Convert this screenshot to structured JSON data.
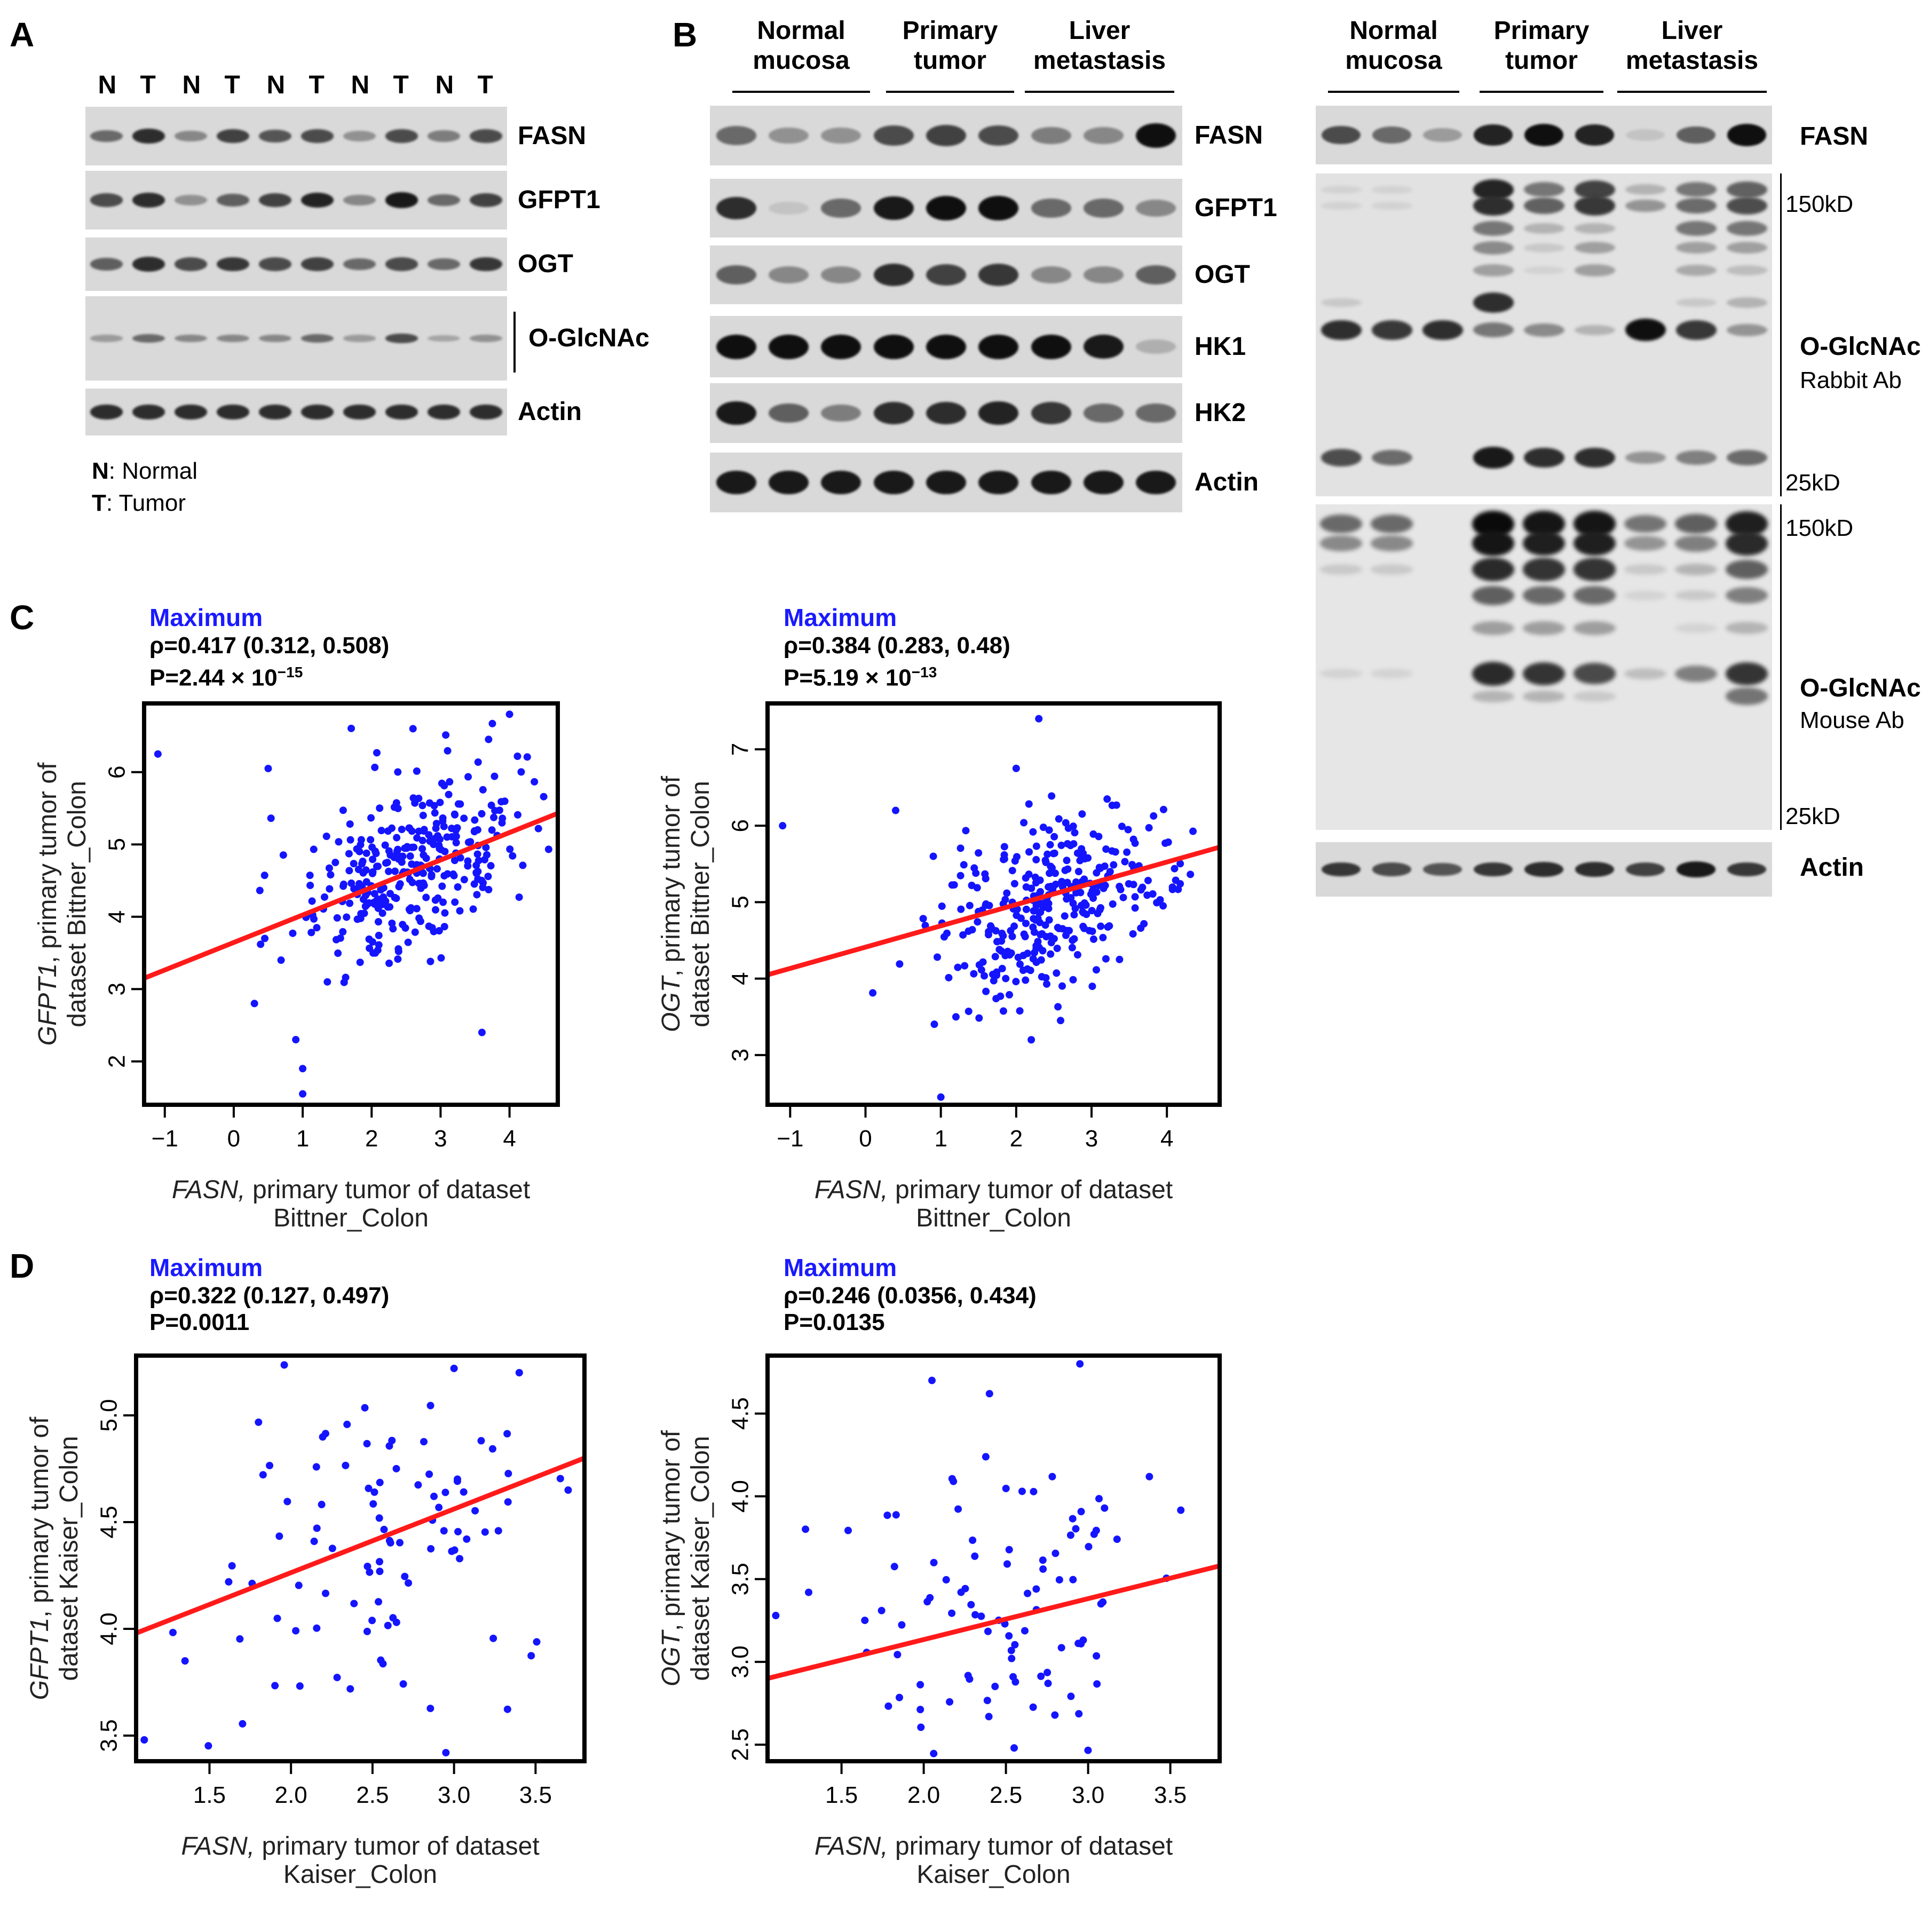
{
  "panelA": {
    "letter": "A",
    "lane_labels": [
      "N",
      "T",
      "N",
      "T",
      "N",
      "T",
      "N",
      "T",
      "N",
      "T"
    ],
    "blots": [
      {
        "name": "FASN",
        "intensity": [
          0.55,
          0.85,
          0.4,
          0.75,
          0.65,
          0.7,
          0.35,
          0.7,
          0.45,
          0.7
        ]
      },
      {
        "name": "GFPT1",
        "intensity": [
          0.7,
          0.85,
          0.35,
          0.6,
          0.75,
          0.9,
          0.4,
          0.95,
          0.55,
          0.75
        ]
      },
      {
        "name": "OGT",
        "intensity": [
          0.6,
          0.85,
          0.7,
          0.8,
          0.7,
          0.75,
          0.55,
          0.7,
          0.55,
          0.8
        ]
      },
      {
        "name": "O-GlcNAc",
        "intensity": [
          0.3,
          0.55,
          0.4,
          0.4,
          0.4,
          0.55,
          0.3,
          0.7,
          0.25,
          0.35
        ]
      },
      {
        "name": "Actin",
        "intensity": [
          0.85,
          0.85,
          0.85,
          0.85,
          0.85,
          0.85,
          0.85,
          0.85,
          0.85,
          0.85
        ]
      }
    ],
    "legend": [
      {
        "key": "N",
        "text": ": Normal"
      },
      {
        "key": "T",
        "text": ": Tumor"
      }
    ]
  },
  "panelB": {
    "letter": "B",
    "groups": [
      "Normal\nmucosa",
      "Primary\ntumor",
      "Liver\nmetastasis"
    ],
    "blots": [
      {
        "name": "FASN",
        "intensity": [
          0.55,
          0.35,
          0.35,
          0.7,
          0.75,
          0.7,
          0.45,
          0.4,
          1.0
        ]
      },
      {
        "name": "GFPT1",
        "intensity": [
          0.85,
          0.1,
          0.55,
          0.95,
          1.0,
          1.0,
          0.55,
          0.55,
          0.4
        ]
      },
      {
        "name": "OGT",
        "intensity": [
          0.6,
          0.4,
          0.4,
          0.85,
          0.75,
          0.8,
          0.4,
          0.4,
          0.6
        ]
      },
      {
        "name": "HK1",
        "intensity": [
          1.0,
          1.0,
          1.0,
          1.0,
          1.0,
          1.0,
          1.0,
          0.95,
          0.2
        ]
      },
      {
        "name": "HK2",
        "intensity": [
          0.95,
          0.6,
          0.45,
          0.85,
          0.85,
          0.9,
          0.8,
          0.55,
          0.55
        ]
      },
      {
        "name": "Actin",
        "intensity": [
          0.95,
          0.95,
          0.95,
          0.95,
          0.95,
          0.95,
          0.95,
          0.95,
          0.95
        ]
      }
    ],
    "right_groups": [
      "Normal\nmucosa",
      "Primary\ntumor",
      "Liver\nmetastasis"
    ],
    "right_fasn": {
      "name": "FASN",
      "intensity": [
        0.7,
        0.55,
        0.3,
        0.9,
        1.0,
        0.9,
        0.1,
        0.6,
        1.0
      ]
    },
    "rabbit": {
      "name": "O-GlcNAc",
      "sub": "Rabbit Ab",
      "top_marker": "150kD",
      "bottom_marker": "25kD"
    },
    "mouse": {
      "name": "O-GlcNAc",
      "sub": "Mouse Ab",
      "top_marker": "150kD",
      "bottom_marker": "25kD"
    },
    "right_actin": {
      "name": "Actin",
      "intensity": [
        0.8,
        0.7,
        0.65,
        0.8,
        0.85,
        0.85,
        0.75,
        0.95,
        0.8
      ]
    }
  },
  "panelC": {
    "letter": "C"
  },
  "panelD": {
    "letter": "D"
  },
  "chart_data": [
    {
      "type": "scatter",
      "id": "C1",
      "title": "Maximum",
      "stat_rho": "ρ=0.417 (0.312, 0.508)",
      "stat_p_base": "P=2.44 × 10",
      "stat_p_exp": "−15",
      "xlabel_italic": "FASN,",
      "xlabel_rest": " primary tumor of dataset",
      "xlabel_line2": "Bittner_Colon",
      "ylabel_italic": "GFPT1",
      "ylabel_rest": ", primary tumor of",
      "ylabel_line2": "dataset Bittner_Colon",
      "xlim": [
        -1.3,
        4.7
      ],
      "ylim": [
        1.4,
        6.95
      ],
      "xticks": [
        -1,
        0,
        1,
        2,
        3,
        4
      ],
      "xtick_labels": [
        "−1",
        "0",
        "1",
        "2",
        "3",
        "4"
      ],
      "yticks": [
        2,
        3,
        4,
        5,
        6
      ],
      "ytick_labels": [
        "2",
        "3",
        "4",
        "5",
        "6"
      ],
      "fit": {
        "x": [
          -1.3,
          4.7
        ],
        "y": [
          3.15,
          5.43
        ]
      },
      "seed": 11,
      "n": 330,
      "cx": 2.55,
      "cy": 4.7,
      "sx": 0.75,
      "sy": 0.65,
      "r": 0.42,
      "outliers": [
        [
          -1.1,
          6.25
        ],
        [
          0.5,
          6.05
        ],
        [
          0.9,
          2.3
        ],
        [
          1.0,
          1.9
        ],
        [
          1.0,
          1.55
        ],
        [
          0.3,
          2.8
        ],
        [
          3.6,
          2.4
        ],
        [
          4.0,
          6.8
        ],
        [
          2.6,
          6.6
        ],
        [
          0.45,
          3.7
        ]
      ]
    },
    {
      "type": "scatter",
      "id": "C2",
      "title": "Maximum",
      "stat_rho": "ρ=0.384 (0.283, 0.48)",
      "stat_p_base": "P=5.19 × 10",
      "stat_p_exp": "−13",
      "xlabel_italic": "FASN,",
      "xlabel_rest": " primary tumor of dataset",
      "xlabel_line2": "Bittner_Colon",
      "ylabel_italic": "OGT",
      "ylabel_rest": ", primary tumor of",
      "ylabel_line2": "dataset Bittner_Colon",
      "xlim": [
        -1.3,
        4.7
      ],
      "ylim": [
        2.35,
        7.6
      ],
      "xticks": [
        -1,
        0,
        1,
        2,
        3,
        4
      ],
      "xtick_labels": [
        "−1",
        "0",
        "1",
        "2",
        "3",
        "4"
      ],
      "yticks": [
        3,
        4,
        5,
        6,
        7
      ],
      "ytick_labels": [
        "3",
        "4",
        "5",
        "6",
        "7"
      ],
      "fit": {
        "x": [
          -1.3,
          4.7
        ],
        "y": [
          4.05,
          5.72
        ]
      },
      "seed": 23,
      "n": 330,
      "cx": 2.55,
      "cy": 5.0,
      "sx": 0.75,
      "sy": 0.6,
      "r": 0.38,
      "outliers": [
        [
          -1.1,
          6.0
        ],
        [
          0.4,
          6.2
        ],
        [
          1.0,
          2.45
        ],
        [
          2.3,
          7.4
        ],
        [
          2.0,
          6.75
        ],
        [
          0.9,
          5.6
        ],
        [
          1.2,
          3.5
        ],
        [
          2.2,
          3.2
        ]
      ]
    },
    {
      "type": "scatter",
      "id": "D1",
      "title": "Maximum",
      "stat_rho": "ρ=0.322 (0.127, 0.497)",
      "stat_p_base": "P=0.0011",
      "stat_p_exp": "",
      "xlabel_italic": "FASN,",
      "xlabel_rest": " primary tumor of dataset",
      "xlabel_line2": "Kaiser_Colon",
      "ylabel_italic": "GFPT1",
      "ylabel_rest": ", primary tumor of",
      "ylabel_line2": "dataset Kaiser_Colon",
      "xlim": [
        1.05,
        3.8
      ],
      "ylim": [
        3.38,
        5.28
      ],
      "xticks": [
        1.5,
        2.0,
        2.5,
        3.0,
        3.5
      ],
      "xtick_labels": [
        "1.5",
        "2.0",
        "2.5",
        "3.0",
        "3.5"
      ],
      "yticks": [
        3.5,
        4.0,
        4.5,
        5.0
      ],
      "ytick_labels": [
        "3.5",
        "4.0",
        "4.5",
        "5.0"
      ],
      "fit": {
        "x": [
          1.05,
          3.8
        ],
        "y": [
          3.98,
          4.8
        ]
      },
      "seed": 37,
      "n": 95,
      "cx": 2.55,
      "cy": 4.4,
      "sx": 0.5,
      "sy": 0.42,
      "r": 0.32,
      "outliers": [
        [
          1.1,
          3.48
        ],
        [
          1.35,
          3.85
        ],
        [
          2.95,
          3.42
        ],
        [
          3.4,
          5.2
        ],
        [
          3.0,
          5.22
        ],
        [
          3.7,
          4.65
        ]
      ]
    },
    {
      "type": "scatter",
      "id": "D2",
      "title": "Maximum",
      "stat_rho": "ρ=0.246 (0.0356, 0.434)",
      "stat_p_base": "P=0.0135",
      "stat_p_exp": "",
      "xlabel_italic": "FASN,",
      "xlabel_rest": " primary tumor of dataset",
      "xlabel_line2": "Kaiser_Colon",
      "ylabel_italic": "OGT",
      "ylabel_rest": ", primary tumor of",
      "ylabel_line2": "dataset Kaiser_Colon",
      "xlim": [
        1.05,
        3.8
      ],
      "ylim": [
        2.4,
        4.85
      ],
      "xticks": [
        1.5,
        2.0,
        2.5,
        3.0,
        3.5
      ],
      "xtick_labels": [
        "1.5",
        "2.0",
        "2.5",
        "3.0",
        "3.5"
      ],
      "yticks": [
        2.5,
        3.0,
        3.5,
        4.0,
        4.5
      ],
      "ytick_labels": [
        "2.5",
        "3.0",
        "3.5",
        "4.0",
        "4.5"
      ],
      "fit": {
        "x": [
          1.05,
          3.8
        ],
        "y": [
          2.9,
          3.58
        ]
      },
      "seed": 53,
      "n": 95,
      "cx": 2.55,
      "cy": 3.3,
      "sx": 0.5,
      "sy": 0.45,
      "r": 0.22,
      "outliers": [
        [
          2.05,
          4.7
        ],
        [
          2.4,
          4.62
        ],
        [
          2.95,
          4.8
        ],
        [
          1.1,
          3.28
        ],
        [
          1.3,
          3.42
        ],
        [
          2.55,
          2.48
        ]
      ]
    }
  ]
}
